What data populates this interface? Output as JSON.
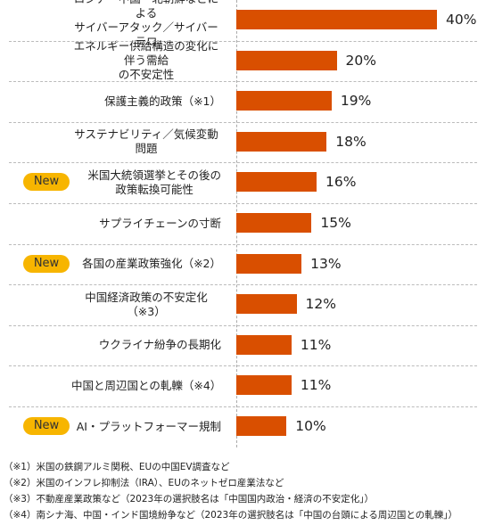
{
  "chart_data": {
    "type": "bar",
    "orientation": "horizontal",
    "categories": [
      "ロシア・中国・北朝鮮などによる\nサイバーアタック／サイバーテロ",
      "エネルギー供給構造の変化に伴う需給\nの不安定性",
      "保護主義的政策（※1）",
      "サステナビリティ／気候変動問題",
      "米国大統領選挙とその後の\n政策転換可能性",
      "サプライチェーンの寸断",
      "各国の産業政策強化（※2）",
      "中国経済政策の不安定化（※3）",
      "ウクライナ紛争の長期化",
      "中国と周辺国との軋轢（※4）",
      "AI・プラットフォーマー規制"
    ],
    "values": [
      40,
      20,
      19,
      18,
      16,
      15,
      13,
      12,
      11,
      11,
      10
    ],
    "value_labels": [
      "40%",
      "20%",
      "19%",
      "18%",
      "16%",
      "15%",
      "13%",
      "12%",
      "11%",
      "11%",
      "10%"
    ],
    "badges": [
      null,
      null,
      null,
      null,
      "New",
      null,
      "New",
      null,
      null,
      null,
      "New"
    ],
    "color": "#d94f00",
    "footnotes": [
      "（※1）米国の鉄鋼アルミ関税、EUの中国EV調査など",
      "（※2）米国のインフレ抑制法（IRA）、EUのネットゼロ産業法など",
      "（※3）不動産産業政策など（2023年の選択肢名は「中国国内政治・経済の不安定化」）",
      "（※4）南シナ海、中国・インド国境紛争など（2023年の選択肢名は「中国の台頭による周辺国との軋轢」）"
    ]
  }
}
